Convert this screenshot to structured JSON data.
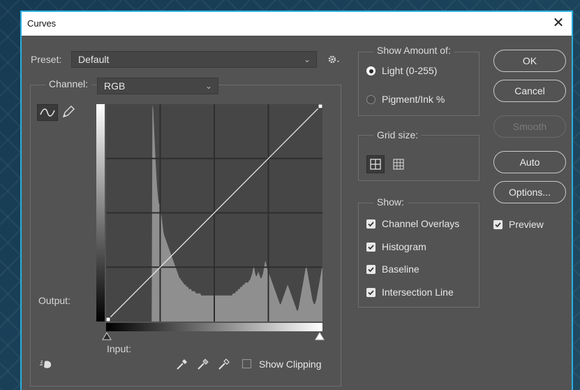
{
  "window": {
    "title": "Curves",
    "close_glyph": "✕"
  },
  "preset": {
    "label": "Preset:",
    "value": "Default"
  },
  "channel": {
    "label": "Channel:",
    "value": "RGB"
  },
  "graph": {
    "output_label": "Output:",
    "input_label": "Input:"
  },
  "show_clipping": {
    "label": "Show Clipping",
    "checked": false
  },
  "show_amount": {
    "title": "Show Amount of:",
    "options": [
      {
        "label": "Light  (0-255)",
        "selected": true
      },
      {
        "label": "Pigment/Ink %",
        "selected": false
      }
    ]
  },
  "grid_size": {
    "title": "Grid size:",
    "selected": "simple"
  },
  "show": {
    "title": "Show:",
    "items": [
      {
        "label": "Channel Overlays",
        "checked": true
      },
      {
        "label": "Histogram",
        "checked": true
      },
      {
        "label": "Baseline",
        "checked": true
      },
      {
        "label": "Intersection Line",
        "checked": true
      }
    ]
  },
  "buttons": {
    "ok": "OK",
    "cancel": "Cancel",
    "smooth": "Smooth",
    "auto": "Auto",
    "options": "Options..."
  },
  "preview": {
    "label": "Preview",
    "checked": true
  },
  "curve": {
    "points": [
      [
        0,
        0
      ],
      [
        255,
        255
      ]
    ]
  },
  "histogram": [
    0,
    0,
    0,
    0,
    0,
    0,
    0,
    0,
    0,
    0,
    0,
    0,
    0,
    0,
    0,
    0,
    0,
    0,
    0,
    0,
    0,
    0,
    0,
    0,
    0,
    0,
    0,
    0,
    0,
    0,
    0,
    0,
    0,
    0,
    0,
    0,
    0,
    0,
    0,
    0,
    0,
    0,
    0,
    0,
    0,
    0,
    0,
    0,
    0,
    0,
    0,
    0,
    0,
    0,
    0,
    0,
    0,
    0,
    0,
    0,
    100,
    98,
    90,
    82,
    74,
    68,
    62,
    58,
    55,
    54,
    52,
    50,
    48,
    45,
    42,
    40,
    39,
    38,
    37,
    36,
    35,
    34,
    33,
    32,
    31,
    30,
    29,
    28,
    27,
    26,
    25,
    24,
    23,
    22,
    21,
    20,
    20,
    19,
    19,
    18,
    18,
    17,
    17,
    17,
    16,
    16,
    16,
    15,
    15,
    15,
    15,
    14,
    14,
    14,
    14,
    14,
    13,
    13,
    13,
    13,
    13,
    13,
    13,
    12,
    12,
    12,
    12,
    12,
    12,
    12,
    12,
    12,
    12,
    12,
    12,
    12,
    12,
    12,
    12,
    12,
    12,
    12,
    12,
    12,
    12,
    12,
    12,
    12,
    12,
    12,
    12,
    12,
    12,
    12,
    12,
    12,
    12,
    12,
    12,
    12,
    12,
    12,
    12,
    12,
    13,
    13,
    13,
    13,
    14,
    14,
    14,
    15,
    15,
    15,
    16,
    16,
    16,
    17,
    17,
    17,
    18,
    18,
    18,
    18,
    18,
    19,
    19,
    20,
    21,
    22,
    24,
    26,
    24,
    22,
    21,
    21,
    22,
    23,
    22,
    21,
    20,
    20,
    21,
    22,
    24,
    26,
    28,
    27,
    25,
    24,
    23,
    22,
    21,
    20,
    19,
    18,
    17,
    16,
    15,
    14,
    13,
    12,
    11,
    10,
    9,
    8,
    8,
    9,
    10,
    11,
    12,
    13,
    14,
    15,
    16,
    17,
    16,
    15,
    14,
    13,
    12,
    11,
    10,
    9,
    8,
    7,
    6,
    5,
    5,
    6,
    8,
    10,
    12,
    14,
    16,
    18,
    20,
    22,
    24,
    26,
    24,
    22,
    20,
    18,
    16,
    14,
    12,
    10,
    9,
    8,
    8,
    9,
    10,
    12,
    14,
    16,
    18,
    20,
    22,
    24,
    26
  ],
  "colors": {
    "accent_border": "#2aaee0",
    "dialog_bg": "#535353",
    "graph_bg": "#464646",
    "histogram": "#8f8f8f"
  }
}
